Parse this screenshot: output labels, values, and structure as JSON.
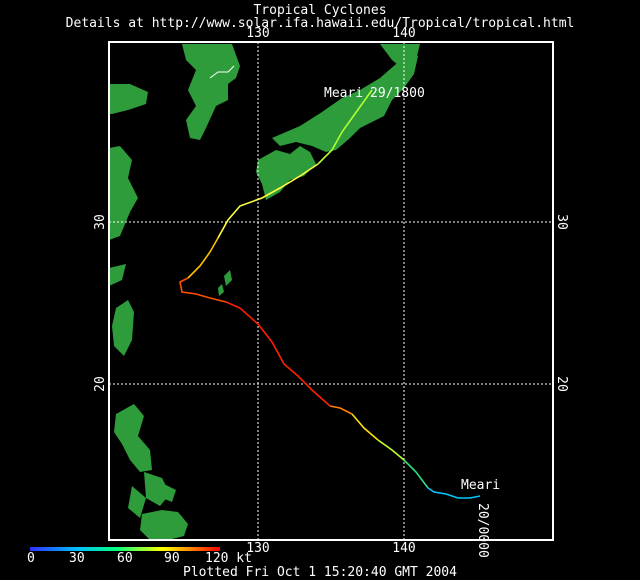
{
  "header": {
    "title": "Tropical Cyclones",
    "subtitle": "Details at http://www.solar.ifa.hawaii.edu/Tropical/tropical.html"
  },
  "map": {
    "lon_labels": [
      "130",
      "140"
    ],
    "lat_labels": [
      "30",
      "20"
    ],
    "grid": true,
    "land_color": "#2e9c3a",
    "frame_color": "#ffffff"
  },
  "storm": {
    "name_end": "Meari",
    "end_time": "29/1800",
    "name_start": "Meari",
    "start_time": "20/0000"
  },
  "scale": {
    "ticks": [
      "0",
      "30",
      "60",
      "90",
      "120 kt"
    ],
    "colors": [
      "#3030ff",
      "#00c0ff",
      "#00ff80",
      "#ffff00",
      "#ff8000",
      "#ff0000"
    ]
  },
  "footer": {
    "plotted": "Plotted Fri Oct 1 15:20:40 GMT 2004"
  }
}
